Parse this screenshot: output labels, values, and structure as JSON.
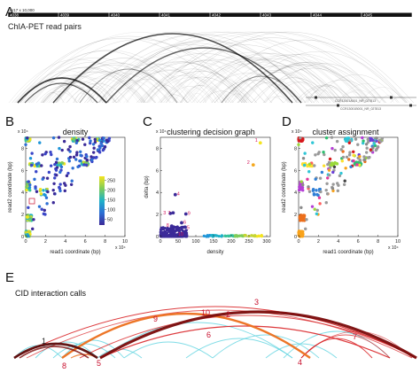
{
  "panelA": {
    "letter": "A",
    "track_header": "chr17 x 10,000",
    "track_ticks": [
      "4038",
      "4039",
      "4040",
      "4041",
      "4042",
      "4043",
      "4044",
      "4045",
      "4046"
    ],
    "reads_label": "ChIA-PET read pairs",
    "gene_labels": [
      "CCR13001A001_NR_027813",
      "CCR13001B001_NR_027813"
    ]
  },
  "panelB": {
    "letter": "B",
    "title": "density",
    "xlabel": "read1 coordinate (bp)",
    "ylabel": "read2 coordinate (bp)",
    "x_ticks": [
      "0",
      "2",
      "4",
      "6",
      "8",
      "10"
    ],
    "y_ticks": [
      "0",
      "2",
      "4",
      "6",
      "8"
    ],
    "x_mag": "x 10⁴",
    "y_mag": "x 10⁴",
    "colorbar_ticks": [
      "250",
      "200",
      "150",
      "100",
      "50"
    ]
  },
  "panelC": {
    "letter": "C",
    "title": "clustering decision graph",
    "xlabel": "density",
    "ylabel": "delta (bp)",
    "x_ticks": [
      "0",
      "50",
      "100",
      "150",
      "200",
      "250",
      "300"
    ],
    "y_ticks": [
      "0",
      "2",
      "4",
      "6",
      "8"
    ],
    "y_mag": "x 10⁴",
    "point_labels": [
      "1",
      "2",
      "3",
      "4",
      "5",
      "6",
      "7",
      "8",
      "9",
      "10"
    ]
  },
  "panelD": {
    "letter": "D",
    "title": "cluster assignment",
    "xlabel": "read1 coordinate (bp)",
    "ylabel": "read2 coordinate (bp)",
    "x_ticks": [
      "0",
      "2",
      "4",
      "6",
      "8",
      "10"
    ],
    "y_ticks": [
      "0",
      "2",
      "4",
      "6",
      "8"
    ],
    "x_mag": "x 10⁴",
    "y_mag": "x 10⁴"
  },
  "panelE": {
    "letter": "E",
    "title": "CID interaction calls",
    "arc_labels": [
      "1",
      "2",
      "3",
      "4",
      "5",
      "6",
      "7",
      "8",
      "9",
      "10"
    ]
  },
  "colors": {
    "viridis_low": "#3b2a98",
    "viridis_high": "#f4e41f",
    "arc_dark": "#7a0a0a",
    "arc_red": "#d7191c",
    "arc_orange": "#ec6f1c",
    "arc_cyan": "#5fd3e0",
    "label_magenta": "#d4145a"
  }
}
